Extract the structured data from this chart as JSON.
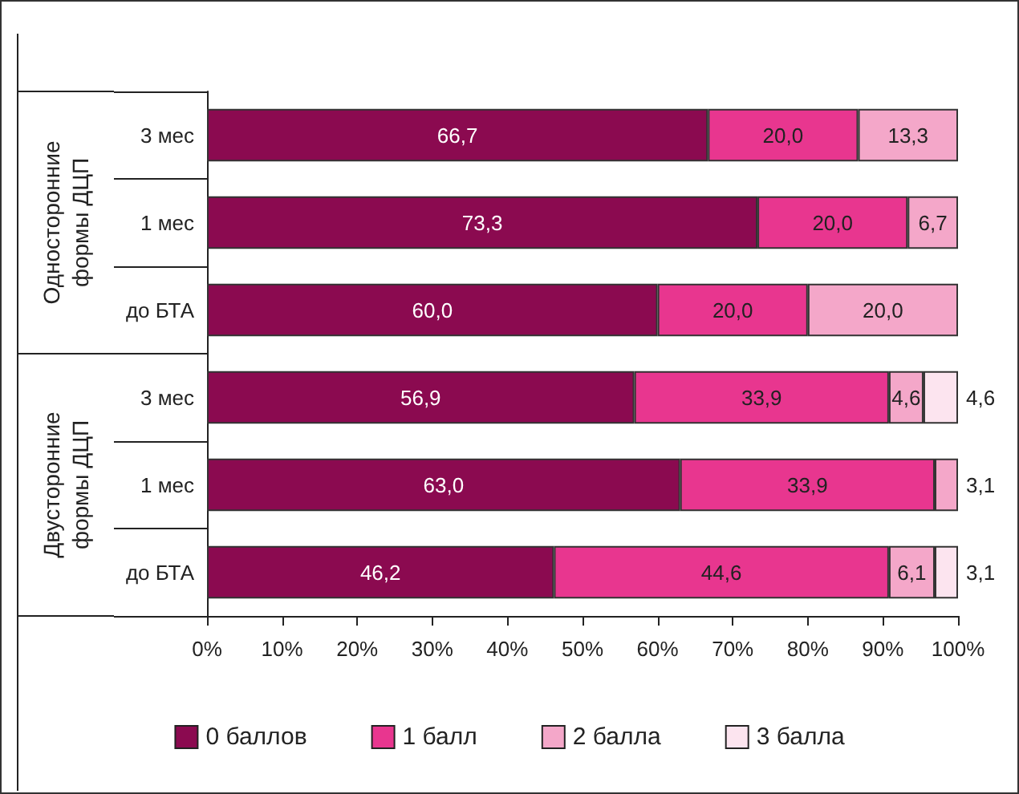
{
  "chart_data": {
    "type": "bar",
    "orientation": "horizontal",
    "stacked": true,
    "categories": [
      "3 мес",
      "1 мес",
      "до БТА",
      "3 мес",
      "1 мес",
      "до БТА"
    ],
    "series": [
      {
        "name": "0 баллов",
        "color": "#8b0a50",
        "values": [
          66.7,
          73.3,
          60.0,
          56.9,
          63.0,
          46.2
        ],
        "value_labels": [
          "66,7",
          "73,3",
          "60,0",
          "56,9",
          "63,0",
          "46,2"
        ]
      },
      {
        "name": "1 балл",
        "color": "#e8368f",
        "values": [
          20.0,
          20.0,
          20.0,
          33.9,
          33.9,
          44.6
        ],
        "value_labels": [
          "20,0",
          "20,0",
          "20,0",
          "33,9",
          "33,9",
          "44,6"
        ]
      },
      {
        "name": "2 балла",
        "color": "#f4a7c9",
        "values": [
          13.3,
          6.7,
          20.0,
          4.6,
          3.1,
          6.1
        ],
        "value_labels": [
          "13,3",
          "6,7",
          "20,0",
          "4,6",
          "3,1",
          "6,1"
        ]
      },
      {
        "name": "3 балла",
        "color": "#fce4ef",
        "values": [
          null,
          null,
          null,
          4.6,
          null,
          3.1
        ],
        "value_labels": [
          null,
          null,
          null,
          "4,6",
          null,
          "3,1"
        ]
      }
    ],
    "xlim": [
      0,
      100
    ],
    "xticks": [
      {
        "value": 0,
        "label": "0%"
      },
      {
        "value": 10,
        "label": "10%"
      },
      {
        "value": 20,
        "label": "20%"
      },
      {
        "value": 30,
        "label": "30%"
      },
      {
        "value": 40,
        "label": "40%"
      },
      {
        "value": 50,
        "label": "50%"
      },
      {
        "value": 60,
        "label": "60%"
      },
      {
        "value": 70,
        "label": "70%"
      },
      {
        "value": 80,
        "label": "80%"
      },
      {
        "value": 90,
        "label": "90%"
      },
      {
        "value": 100,
        "label": "100%"
      }
    ],
    "annotations": [
      "Односторонние формы ДЦП",
      "Двусторонние формы ДЦП"
    ],
    "grid": false,
    "legend": "bottom"
  }
}
